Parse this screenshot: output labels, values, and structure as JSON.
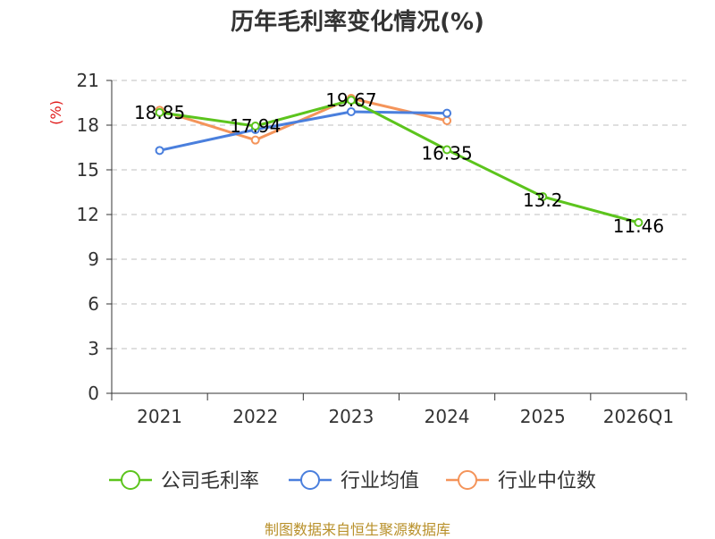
{
  "title": "历年毛利率变化情况(%)",
  "source_note": "制图数据来自恒生聚源数据库",
  "chart_data": {
    "type": "line",
    "title": "历年毛利率变化情况(%)",
    "ylabel": "(%)",
    "xlabel": "",
    "categories": [
      "2021",
      "2022",
      "2023",
      "2024",
      "2025",
      "2026Q1"
    ],
    "ylim": [
      0,
      21
    ],
    "yticks": [
      0,
      3,
      6,
      9,
      12,
      15,
      18,
      21
    ],
    "grid": "horizontal-dashed",
    "legend_position": "bottom",
    "series": [
      {
        "name": "公司毛利率",
        "color": "#5cc41d",
        "values": [
          18.85,
          17.94,
          19.67,
          16.35,
          13.2,
          11.46
        ],
        "labels": [
          "18.85",
          "17.94",
          "19.67",
          "16.35",
          "13.2",
          "11.46"
        ]
      },
      {
        "name": "行业均值",
        "color": "#4a7fdd",
        "values": [
          16.3,
          17.7,
          18.9,
          18.8,
          null,
          null
        ]
      },
      {
        "name": "行业中位数",
        "color": "#f4945a",
        "values": [
          19.0,
          17.0,
          19.8,
          18.3,
          null,
          null
        ]
      }
    ]
  }
}
